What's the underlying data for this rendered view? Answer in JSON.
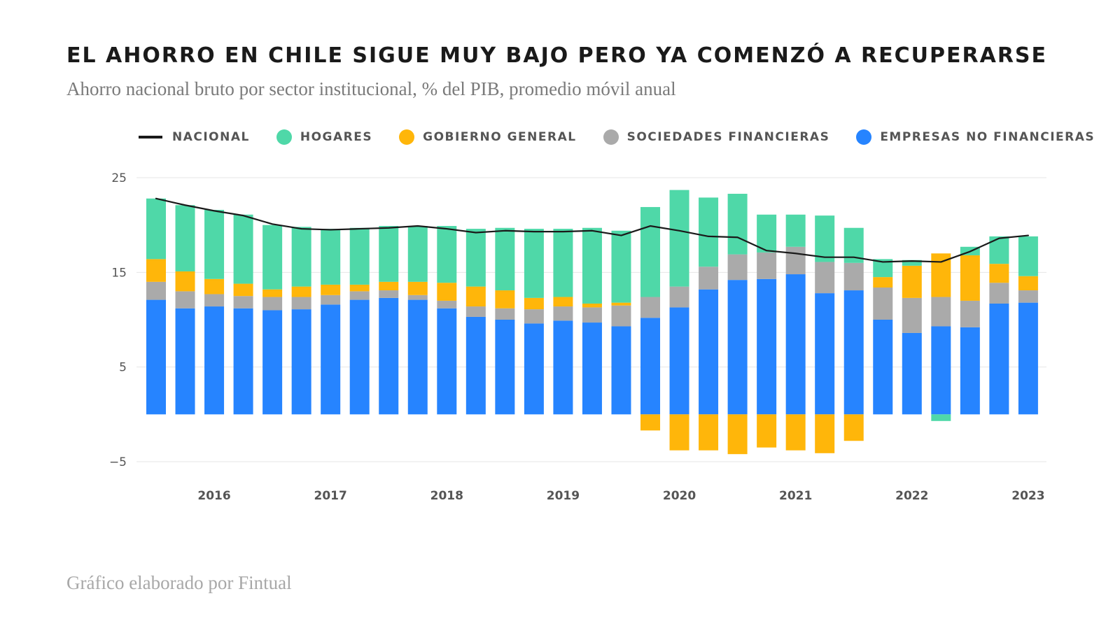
{
  "title": "EL AHORRO EN CHILE SIGUE MUY BAJO PERO YA COMENZÓ A RECUPERARSE",
  "subtitle": "Ahorro nacional bruto por sector institucional, % del PIB, promedio móvil anual",
  "footer": "Gráfico elaborado por Fintual",
  "colors": {
    "nacional": "#1a1a1a",
    "hogares": "#4fd8a8",
    "gobierno": "#ffb60a",
    "sociedades": "#aaaaaa",
    "empresas": "#2684ff",
    "grid": "#e6e6e6"
  },
  "legend": [
    {
      "label": "NACIONAL",
      "kind": "line",
      "color": "#1a1a1a"
    },
    {
      "label": "HOGARES",
      "kind": "dot",
      "color": "#4fd8a8"
    },
    {
      "label": "GOBIERNO GENERAL",
      "kind": "dot",
      "color": "#ffb60a"
    },
    {
      "label": "SOCIEDADES FINANCIERAS",
      "kind": "dot",
      "color": "#aaaaaa"
    },
    {
      "label": "EMPRESAS NO FINANCIERAS",
      "kind": "dot",
      "color": "#2684ff"
    }
  ],
  "chart_data": {
    "type": "bar",
    "stacked": true,
    "ylim": [
      -5,
      25
    ],
    "yticks": [
      25,
      15,
      5,
      -5
    ],
    "ytick_labels": [
      "25",
      "15",
      "5",
      "−5"
    ],
    "grid": true,
    "legend_position": "top",
    "year_labels": [
      {
        "label": "2016",
        "at_index": 2
      },
      {
        "label": "2017",
        "at_index": 6
      },
      {
        "label": "2018",
        "at_index": 10
      },
      {
        "label": "2019",
        "at_index": 14
      },
      {
        "label": "2020",
        "at_index": 18
      },
      {
        "label": "2021",
        "at_index": 22
      },
      {
        "label": "2022",
        "at_index": 26
      },
      {
        "label": "2023",
        "at_index": 30
      }
    ],
    "series": [
      {
        "name": "EMPRESAS NO FINANCIERAS",
        "key": "empresas",
        "values": [
          12.1,
          11.2,
          11.4,
          11.2,
          11.0,
          11.1,
          11.6,
          12.1,
          12.3,
          12.1,
          11.2,
          10.3,
          10.0,
          9.6,
          9.9,
          9.7,
          9.3,
          10.2,
          11.3,
          13.2,
          14.2,
          14.3,
          14.8,
          12.8,
          13.1,
          10.0,
          8.6,
          9.3,
          9.2,
          11.7,
          11.8
        ]
      },
      {
        "name": "SOCIEDADES FINANCIERAS",
        "key": "sociedades",
        "values": [
          1.9,
          1.8,
          1.3,
          1.3,
          1.4,
          1.3,
          1.0,
          0.9,
          0.8,
          0.5,
          0.8,
          1.1,
          1.2,
          1.5,
          1.5,
          1.6,
          2.2,
          2.2,
          2.2,
          2.4,
          2.7,
          2.8,
          2.9,
          3.3,
          2.9,
          3.4,
          3.7,
          3.1,
          2.8,
          2.2,
          1.3
        ]
      },
      {
        "name": "GOBIERNO GENERAL",
        "key": "gobierno",
        "values": [
          2.4,
          2.1,
          1.6,
          1.3,
          0.8,
          1.1,
          1.1,
          0.7,
          0.9,
          1.4,
          1.9,
          2.1,
          1.9,
          1.2,
          1.0,
          0.4,
          0.3,
          -1.7,
          -3.8,
          -3.8,
          -4.2,
          -3.5,
          -3.8,
          -4.1,
          -2.8,
          1.1,
          3.4,
          4.6,
          4.8,
          2.0,
          1.5
        ]
      },
      {
        "name": "HOGARES",
        "key": "hogares",
        "values": [
          6.4,
          7.0,
          7.3,
          7.3,
          6.8,
          6.3,
          5.9,
          6.0,
          5.9,
          5.9,
          6.0,
          6.1,
          6.6,
          7.3,
          7.2,
          8.0,
          7.6,
          9.5,
          10.2,
          7.3,
          6.4,
          4.0,
          3.4,
          4.9,
          3.7,
          1.9,
          0.6,
          -0.7,
          0.9,
          2.9,
          4.2
        ]
      }
    ],
    "nacional": [
      22.8,
      22.1,
      21.5,
      21.0,
      20.1,
      19.6,
      19.5,
      19.6,
      19.7,
      19.9,
      19.6,
      19.2,
      19.4,
      19.3,
      19.3,
      19.4,
      18.9,
      19.9,
      19.4,
      18.8,
      18.7,
      17.3,
      17.0,
      16.6,
      16.6,
      16.1,
      16.2,
      16.1,
      17.2,
      18.6,
      18.9
    ]
  }
}
